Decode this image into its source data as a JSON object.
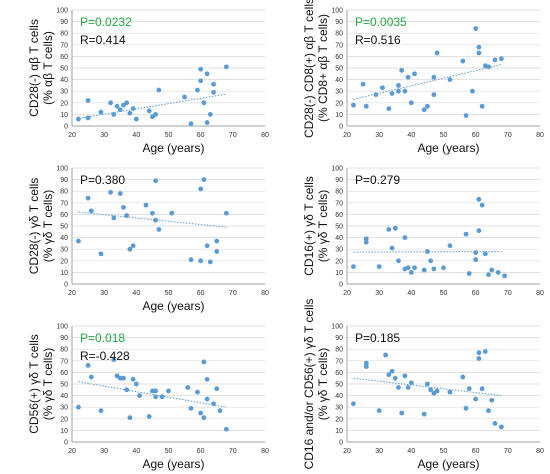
{
  "chart_data": [
    {
      "type": "scatter",
      "xlabel": "Age (years)",
      "ylabel_lines": [
        "CD28(-) αβ T cells",
        "(% αβ T cells)"
      ],
      "ylim": [
        0,
        100
      ],
      "yticks": [
        0,
        10,
        20,
        30,
        40,
        50,
        60,
        70,
        80,
        90,
        100
      ],
      "xlim": [
        20,
        80
      ],
      "xticks": [
        20,
        30,
        40,
        50,
        60,
        70,
        80
      ],
      "annotations": [
        {
          "text": "P=0.0232",
          "color": "#22aa44"
        },
        {
          "text": "R=0.414",
          "color": "#111111"
        }
      ],
      "points": [
        [
          22,
          6
        ],
        [
          25,
          22
        ],
        [
          25,
          7
        ],
        [
          29,
          12
        ],
        [
          32,
          20
        ],
        [
          33,
          10
        ],
        [
          34,
          17
        ],
        [
          35,
          14
        ],
        [
          36,
          18
        ],
        [
          37,
          20
        ],
        [
          38,
          11
        ],
        [
          39,
          15
        ],
        [
          40,
          6
        ],
        [
          44,
          13
        ],
        [
          45,
          8
        ],
        [
          47,
          31
        ],
        [
          46,
          10
        ],
        [
          55,
          25
        ],
        [
          57,
          2
        ],
        [
          59,
          31
        ],
        [
          60,
          39
        ],
        [
          60,
          49
        ],
        [
          61,
          20
        ],
        [
          62,
          3
        ],
        [
          62,
          45
        ],
        [
          63,
          10
        ],
        [
          64,
          29
        ],
        [
          64,
          36
        ],
        [
          68,
          51
        ]
      ],
      "trend": [
        [
          22,
          6.5
        ],
        [
          68,
          27.5
        ]
      ],
      "point_color": "#5b9bd5"
    },
    {
      "type": "scatter",
      "xlabel": "Age (years)",
      "ylabel_lines": [
        "CD28(-) CD8(+) αβ T cells",
        "(% CD8+ αβ T cells)"
      ],
      "ylim": [
        0,
        100
      ],
      "yticks": [
        0,
        10,
        20,
        30,
        40,
        50,
        60,
        70,
        80,
        90,
        100
      ],
      "xlim": [
        20,
        80
      ],
      "xticks": [
        20,
        30,
        40,
        50,
        60,
        70,
        80
      ],
      "annotations": [
        {
          "text": "P=0.0035",
          "color": "#22aa44"
        },
        {
          "text": "R=0.516",
          "color": "#111111"
        }
      ],
      "points": [
        [
          22,
          18
        ],
        [
          25,
          36
        ],
        [
          26,
          17
        ],
        [
          29,
          27
        ],
        [
          31,
          33
        ],
        [
          33,
          15
        ],
        [
          34,
          28
        ],
        [
          36,
          30
        ],
        [
          36,
          35
        ],
        [
          37,
          48
        ],
        [
          38,
          30
        ],
        [
          39,
          42
        ],
        [
          40,
          20
        ],
        [
          41,
          45
        ],
        [
          44,
          14
        ],
        [
          45,
          17
        ],
        [
          47,
          27
        ],
        [
          47,
          42
        ],
        [
          48,
          63
        ],
        [
          52,
          40
        ],
        [
          56,
          56
        ],
        [
          57,
          9
        ],
        [
          59,
          30
        ],
        [
          60,
          84
        ],
        [
          61,
          63
        ],
        [
          61,
          68
        ],
        [
          62,
          17
        ],
        [
          63,
          52
        ],
        [
          64,
          51
        ],
        [
          66,
          57
        ],
        [
          68,
          58
        ]
      ],
      "trend": [
        [
          22,
          23
        ],
        [
          68,
          53
        ]
      ],
      "point_color": "#5b9bd5"
    },
    {
      "type": "scatter",
      "xlabel": "Age (years)",
      "ylabel_lines": [
        "CD28(-) γδ T cells",
        "(% γδ T cells)"
      ],
      "ylim": [
        0,
        100
      ],
      "yticks": [
        0,
        10,
        20,
        30,
        40,
        50,
        60,
        70,
        80,
        90,
        100
      ],
      "xlim": [
        20,
        80
      ],
      "xticks": [
        20,
        30,
        40,
        50,
        60,
        70,
        80
      ],
      "annotations": [
        {
          "text": "P=0.380",
          "color": "#111111"
        }
      ],
      "points": [
        [
          22,
          37
        ],
        [
          25,
          74
        ],
        [
          26,
          63
        ],
        [
          29,
          26
        ],
        [
          32,
          79
        ],
        [
          33,
          57
        ],
        [
          35,
          78
        ],
        [
          36,
          66
        ],
        [
          37,
          59
        ],
        [
          38,
          30
        ],
        [
          39,
          33
        ],
        [
          43,
          68
        ],
        [
          45,
          61
        ],
        [
          46,
          89
        ],
        [
          46,
          55
        ],
        [
          47,
          47
        ],
        [
          51,
          61
        ],
        [
          57,
          21
        ],
        [
          60,
          82
        ],
        [
          60,
          20
        ],
        [
          61,
          90
        ],
        [
          62,
          33
        ],
        [
          63,
          19
        ],
        [
          65,
          37
        ],
        [
          65,
          28
        ],
        [
          68,
          61
        ]
      ],
      "trend": [
        [
          22,
          62
        ],
        [
          68,
          49
        ]
      ],
      "point_color": "#5b9bd5"
    },
    {
      "type": "scatter",
      "xlabel": "",
      "ylabel_lines": [
        "CD16(+) γδ T cells",
        "(% γδ T cells)"
      ],
      "ylim": [
        0,
        100
      ],
      "yticks": [
        0,
        10,
        20,
        30,
        40,
        50,
        60,
        70,
        80,
        90,
        100
      ],
      "xlim": [
        20,
        80
      ],
      "xticks": [
        20,
        30,
        40,
        50,
        60,
        70,
        80
      ],
      "annotations": [
        {
          "text": "P=0.279",
          "color": "#111111"
        }
      ],
      "points": [
        [
          22,
          15
        ],
        [
          26,
          39
        ],
        [
          26,
          36
        ],
        [
          30,
          15
        ],
        [
          33,
          47
        ],
        [
          34,
          31
        ],
        [
          35,
          48
        ],
        [
          36,
          20
        ],
        [
          38,
          13
        ],
        [
          38,
          40
        ],
        [
          39,
          14
        ],
        [
          40,
          10
        ],
        [
          41,
          14
        ],
        [
          44,
          12
        ],
        [
          45,
          28
        ],
        [
          46,
          20
        ],
        [
          47,
          13
        ],
        [
          50,
          14
        ],
        [
          52,
          33
        ],
        [
          57,
          43
        ],
        [
          58,
          9
        ],
        [
          60,
          27
        ],
        [
          60,
          21
        ],
        [
          61,
          73
        ],
        [
          61,
          46
        ],
        [
          62,
          68
        ],
        [
          63,
          26
        ],
        [
          64,
          8
        ],
        [
          65,
          12
        ],
        [
          67,
          10
        ],
        [
          69,
          7
        ]
      ],
      "trend": [
        [
          22,
          27.5
        ],
        [
          68,
          28
        ]
      ],
      "point_color": "#5b9bd5"
    },
    {
      "type": "scatter",
      "xlabel": "Age (years)",
      "ylabel_lines": [
        "CD56(+) γδ T cells",
        "(% γδ T cells)"
      ],
      "ylim": [
        0,
        100
      ],
      "yticks": [
        0,
        10,
        20,
        30,
        40,
        50,
        60,
        70,
        80,
        90,
        100
      ],
      "xlim": [
        20,
        80
      ],
      "xticks": [
        20,
        30,
        40,
        50,
        60,
        70,
        80
      ],
      "annotations": [
        {
          "text": "P=0.018",
          "color": "#22aa44"
        },
        {
          "text": "R=-0.428",
          "color": "#111111"
        }
      ],
      "points": [
        [
          22,
          30
        ],
        [
          25,
          66
        ],
        [
          26,
          56
        ],
        [
          29,
          27
        ],
        [
          33,
          71
        ],
        [
          34,
          57
        ],
        [
          35,
          55
        ],
        [
          36,
          55
        ],
        [
          37,
          45
        ],
        [
          38,
          21
        ],
        [
          39,
          54
        ],
        [
          40,
          50
        ],
        [
          41,
          40
        ],
        [
          44,
          22
        ],
        [
          45,
          44
        ],
        [
          46,
          39
        ],
        [
          46,
          44
        ],
        [
          48,
          39
        ],
        [
          50,
          44
        ],
        [
          56,
          47
        ],
        [
          57,
          29
        ],
        [
          59,
          43
        ],
        [
          60,
          25
        ],
        [
          61,
          69
        ],
        [
          61,
          21
        ],
        [
          62,
          54
        ],
        [
          62,
          37
        ],
        [
          64,
          33
        ],
        [
          65,
          46
        ],
        [
          66,
          27
        ],
        [
          68,
          11
        ]
      ],
      "trend": [
        [
          22,
          52
        ],
        [
          68,
          30
        ]
      ],
      "point_color": "#5b9bd5"
    },
    {
      "type": "scatter",
      "xlabel": "Age (years)",
      "ylabel_lines": [
        "CD16 and/or CD56(+) γδ T cells",
        "(% γδ T cells)"
      ],
      "ylim": [
        0,
        100
      ],
      "yticks": [
        0,
        10,
        20,
        30,
        40,
        50,
        60,
        70,
        80,
        90,
        100
      ],
      "xlim": [
        20,
        80
      ],
      "xticks": [
        20,
        30,
        40,
        50,
        60,
        70,
        80
      ],
      "annotations": [
        {
          "text": "P=0.185",
          "color": "#111111"
        }
      ],
      "points": [
        [
          22,
          33
        ],
        [
          26,
          68
        ],
        [
          26,
          65
        ],
        [
          30,
          27
        ],
        [
          32,
          75
        ],
        [
          33,
          58
        ],
        [
          34,
          61
        ],
        [
          35,
          55
        ],
        [
          36,
          47
        ],
        [
          37,
          25
        ],
        [
          38,
          57
        ],
        [
          39,
          47
        ],
        [
          40,
          51
        ],
        [
          44,
          24
        ],
        [
          45,
          50
        ],
        [
          46,
          45
        ],
        [
          47,
          42
        ],
        [
          48,
          44
        ],
        [
          52,
          43
        ],
        [
          56,
          56
        ],
        [
          57,
          29
        ],
        [
          58,
          46
        ],
        [
          60,
          37
        ],
        [
          61,
          77
        ],
        [
          61,
          72
        ],
        [
          62,
          46
        ],
        [
          63,
          78
        ],
        [
          64,
          27
        ],
        [
          65,
          36
        ],
        [
          66,
          16
        ],
        [
          68,
          13
        ]
      ],
      "trend": [
        [
          22,
          55
        ],
        [
          68,
          40
        ]
      ],
      "point_color": "#5b9bd5"
    }
  ]
}
